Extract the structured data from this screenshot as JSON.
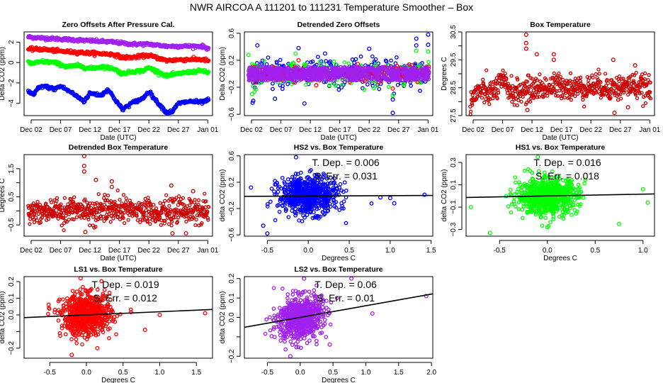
{
  "title": "NWR   AIRCOA A   111201 to 111231   Temperature Smoother – Box",
  "colors": {
    "HS2": "#0000ff",
    "HS1": "#00ff00",
    "LS1": "#ff0000",
    "LS2": "#a020f0",
    "box_temp": "#cc0000",
    "fit_line": "#000000"
  },
  "chart_data": [
    {
      "id": "zero-offsets",
      "type": "scatter",
      "title": "Zero Offsets After Pressure Cal.",
      "xlabel": "Date (UTC)",
      "ylabel": "Delta CO2 (ppm)",
      "x_ticks": [
        "Dec 02",
        "Dec 07",
        "Dec 12",
        "Dec 17",
        "Dec 22",
        "Dec 27",
        "Jan 01"
      ],
      "x_tick_days": [
        2,
        7,
        12,
        17,
        22,
        27,
        32
      ],
      "xlim": [
        0.8,
        32.8
      ],
      "ylim": [
        -5.2,
        3.0
      ],
      "y_ticks": [
        -4,
        -2,
        0,
        2
      ],
      "series": [
        {
          "name": "LS2",
          "x": [
            1.5,
            4,
            7,
            10,
            13,
            16,
            19,
            22,
            25,
            28,
            31,
            32
          ],
          "y": [
            2.5,
            2.4,
            2.3,
            2.2,
            2.1,
            2.0,
            1.8,
            1.8,
            1.6,
            1.6,
            1.6,
            1.4
          ]
        },
        {
          "name": "LS1",
          "x": [
            1.5,
            4,
            7,
            10,
            13,
            16,
            17.5,
            19,
            22,
            25,
            28,
            31,
            32
          ],
          "y": [
            1.3,
            1.3,
            1.1,
            1.0,
            0.9,
            0.8,
            0.5,
            0.5,
            0.7,
            0.2,
            0.3,
            0.3,
            0.2
          ]
        },
        {
          "name": "HS1",
          "x": [
            1.5,
            2,
            4,
            6,
            8,
            10,
            12,
            14,
            16,
            17.5,
            19,
            21,
            22,
            25,
            26,
            28,
            31,
            32
          ],
          "y": [
            0.0,
            -0.1,
            0.1,
            0.0,
            -0.4,
            -0.3,
            -0.6,
            -0.4,
            -0.6,
            -1.1,
            -0.9,
            -0.8,
            -0.5,
            -1.3,
            -1.2,
            -1.0,
            -0.8,
            -1.0
          ]
        },
        {
          "name": "HS2",
          "x": [
            1.5,
            2.5,
            3,
            4,
            6,
            7,
            9,
            11,
            12,
            14,
            15,
            17.5,
            19,
            21,
            22,
            23,
            25,
            26,
            27,
            29,
            31,
            32
          ],
          "y": [
            -2.8,
            -3.2,
            -2.6,
            -2.3,
            -2.6,
            -2.3,
            -3.0,
            -3.8,
            -3.0,
            -3.2,
            -2.6,
            -4.6,
            -4.0,
            -3.5,
            -2.8,
            -3.6,
            -4.9,
            -4.8,
            -4.0,
            -3.8,
            -3.9,
            -3.7
          ]
        }
      ]
    },
    {
      "id": "detrended-zero-offsets",
      "type": "scatter",
      "title": "Detrended Zero Offsets",
      "xlabel": "Date (UTC)",
      "ylabel": "Delta CO2 (ppm)",
      "x_ticks": [
        "Dec 02",
        "Dec 07",
        "Dec 12",
        "Dec 17",
        "Dec 22",
        "Dec 27",
        "Jan 01"
      ],
      "x_tick_days": [
        2,
        7,
        12,
        17,
        22,
        27,
        32
      ],
      "xlim": [
        0.8,
        32.8
      ],
      "ylim": [
        -0.62,
        0.62
      ],
      "y_ticks": [
        -0.6,
        -0.2,
        0.2,
        0.6
      ],
      "y_tick_labels": [
        "-0.6",
        "-0.2",
        "0.2",
        "0.6"
      ],
      "series": [
        {
          "name": "HS2",
          "spread": 0.25,
          "outliers": [
            [
              2.2,
              -0.43
            ],
            [
              2.3,
              -0.4
            ],
            [
              3,
              0.42
            ],
            [
              6,
              -0.37
            ],
            [
              10,
              0.38
            ],
            [
              11,
              -0.44
            ],
            [
              14.5,
              0.3
            ],
            [
              22,
              0.37
            ],
            [
              26,
              -0.58
            ],
            [
              26,
              -0.38
            ],
            [
              30,
              0.52
            ],
            [
              30,
              0.42
            ],
            [
              32,
              0.58
            ],
            [
              32,
              0.43
            ]
          ]
        },
        {
          "name": "HS1",
          "spread": 0.18,
          "outliers": [
            [
              1.5,
              0.28
            ],
            [
              2.1,
              -0.3
            ],
            [
              9.5,
              0.3
            ],
            [
              26,
              -0.32
            ],
            [
              30,
              0.34
            ],
            [
              32,
              0.33
            ]
          ]
        },
        {
          "name": "LS1",
          "spread": 0.12,
          "outliers": [
            [
              10,
              0.2
            ],
            [
              13,
              -0.17
            ],
            [
              26,
              -0.22
            ]
          ]
        },
        {
          "name": "LS2",
          "spread": 0.1,
          "outliers": []
        }
      ]
    },
    {
      "id": "box-temperature",
      "type": "scatter",
      "title": "Box Temperature",
      "xlabel": "Date (UTC)",
      "ylabel": "Degrees C",
      "x_ticks": [
        "Dec 02",
        "Dec 07",
        "Dec 12",
        "Dec 17",
        "Dec 22",
        "Dec 27",
        "Jan 01"
      ],
      "x_tick_days": [
        2,
        7,
        12,
        17,
        22,
        27,
        32
      ],
      "xlim": [
        0.8,
        32.8
      ],
      "ylim": [
        27.5,
        30.5
      ],
      "y_ticks": [
        27.5,
        28.0,
        28.5,
        29.0,
        29.5,
        30.0,
        30.5
      ],
      "y_tick_labels": [
        "27.5",
        "",
        "28.5",
        "",
        "29.5",
        "",
        "30.5"
      ],
      "baseline": {
        "x": [
          1.5,
          3,
          5,
          7,
          9,
          11,
          13,
          15,
          17,
          19,
          21,
          23,
          25,
          27,
          29,
          31,
          32
        ],
        "y": [
          28.0,
          28.4,
          28.3,
          28.7,
          28.3,
          28.4,
          28.5,
          28.5,
          28.6,
          28.5,
          28.5,
          28.6,
          28.5,
          28.5,
          28.6,
          28.5,
          28.4
        ]
      },
      "outliers": [
        [
          11,
          30.4
        ],
        [
          11,
          30.1
        ],
        [
          11,
          29.9
        ],
        [
          11.2,
          27.7
        ],
        [
          12.8,
          29.7
        ],
        [
          15.7,
          29.7
        ],
        [
          15.7,
          29.5
        ],
        [
          25.8,
          29.5
        ],
        [
          26,
          27.6
        ],
        [
          28.3,
          27.8
        ],
        [
          29.5,
          29.3
        ]
      ]
    },
    {
      "id": "detrended-box-temperature",
      "type": "scatter",
      "title": "Detrended Box Temperature",
      "xlabel": "Date (UTC)",
      "ylabel": "Degrees C",
      "x_ticks": [
        "Dec 02",
        "Dec 07",
        "Dec 12",
        "Dec 17",
        "Dec 22",
        "Dec 27",
        "Jan 01"
      ],
      "x_tick_days": [
        2,
        7,
        12,
        17,
        22,
        27,
        32
      ],
      "xlim": [
        0.8,
        32.8
      ],
      "ylim": [
        -0.9,
        2.0
      ],
      "y_ticks": [
        -0.5,
        0.0,
        0.5,
        1.0,
        1.5
      ],
      "y_tick_labels": [
        "-0.5",
        "",
        "0.5",
        "",
        "1.5"
      ],
      "outliers": [
        [
          11,
          1.95
        ],
        [
          11,
          1.6
        ],
        [
          11,
          1.4
        ],
        [
          11.2,
          -0.75
        ],
        [
          13,
          1.1
        ],
        [
          15.7,
          1.05
        ],
        [
          15.7,
          0.85
        ],
        [
          25.8,
          0.9
        ],
        [
          26,
          -0.8
        ],
        [
          28.3,
          -0.8
        ],
        [
          29.5,
          0.7
        ]
      ]
    },
    {
      "id": "hs2-vs-box",
      "type": "scatter",
      "title": "HS2 vs. Box Temperature",
      "xlabel": "Degrees C",
      "ylabel": "delta CO2 (ppm)",
      "series_color": "HS2",
      "xlim": [
        -0.78,
        1.52
      ],
      "ylim": [
        -0.62,
        0.62
      ],
      "x_ticks": [
        -0.5,
        0.0,
        0.5,
        1.0,
        1.5
      ],
      "x_tick_labels": [
        "-0.5",
        "0.0",
        "0.5",
        "1.0",
        "1.5"
      ],
      "y_ticks": [
        -0.6,
        -0.2,
        0.2,
        0.6
      ],
      "y_tick_labels": [
        "-0.6",
        "-0.2",
        "0.2",
        "0.6"
      ],
      "cloud": {
        "x_sd": 0.18,
        "y_sd": 0.14
      },
      "outliers": [
        [
          1.42,
          0.01
        ],
        [
          -0.5,
          -0.58
        ],
        [
          -0.55,
          -0.46
        ],
        [
          -0.15,
          0.58
        ],
        [
          1.05,
          -0.12
        ],
        [
          1.0,
          -0.04
        ],
        [
          0.88,
          -0.03
        ],
        [
          -0.7,
          0.12
        ]
      ],
      "fit": {
        "slope": 0.006,
        "intercept": -0.01
      },
      "annotations": [
        "T. Dep. =  0.006",
        "S. Err. =  0.031"
      ]
    },
    {
      "id": "hs1-vs-box",
      "type": "scatter",
      "title": "HS1 vs. Box Temperature",
      "xlabel": "Degrees C",
      "ylabel": "delta CO2 (ppm)",
      "series_color": "HS1",
      "xlim": [
        -0.85,
        1.12
      ],
      "ylim": [
        -0.36,
        0.37
      ],
      "x_ticks": [
        -0.5,
        0.0,
        0.5,
        1.0
      ],
      "x_tick_labels": [
        "-0.5",
        "0.0",
        "0.5",
        "1.0"
      ],
      "y_ticks": [
        -0.3,
        -0.1,
        0.1,
        0.3
      ],
      "y_tick_labels": [
        "-0.3",
        "-0.1",
        "0.1",
        "0.3"
      ],
      "cloud": {
        "x_sd": 0.16,
        "y_sd": 0.08
      },
      "outliers": [
        [
          -0.6,
          -0.33
        ],
        [
          1.0,
          0.06
        ],
        [
          1.05,
          -0.06
        ],
        [
          0.75,
          -0.25
        ],
        [
          -0.8,
          -0.1
        ],
        [
          -0.1,
          0.35
        ],
        [
          0.0,
          -0.28
        ]
      ],
      "fit": {
        "slope": 0.016,
        "intercept": 0.0
      },
      "annotations": [
        "T. Dep. =  0.016",
        "S. Err. =  0.018"
      ]
    },
    {
      "id": "ls1-vs-box",
      "type": "scatter",
      "title": "LS1 vs. Box Temperature",
      "xlabel": "Degrees C",
      "ylabel": "delta CO2 (ppm)",
      "series_color": "LS1",
      "xlim": [
        -0.85,
        1.72
      ],
      "ylim": [
        -0.26,
        0.23
      ],
      "x_ticks": [
        -0.5,
        0.0,
        0.5,
        1.0,
        1.5
      ],
      "x_tick_labels": [
        "-0.5",
        "0.0",
        "0.5",
        "1.0",
        "1.5"
      ],
      "y_ticks": [
        -0.2,
        -0.1,
        0.0,
        0.1,
        0.2
      ],
      "y_tick_labels": [
        "-0.2",
        "",
        "0.0",
        "0.1",
        "0.2"
      ],
      "cloud": {
        "x_sd": 0.17,
        "y_sd": 0.06
      },
      "outliers": [
        [
          1.62,
          0.01
        ],
        [
          -0.2,
          -0.24
        ],
        [
          -0.08,
          0.22
        ],
        [
          0.15,
          -0.2
        ],
        [
          1.0,
          0.0
        ],
        [
          0.8,
          -0.09
        ]
      ],
      "fit": {
        "slope": 0.019,
        "intercept": 0.0
      },
      "annotations": [
        "T. Dep. =  0.019",
        "S. Err. =  0.012"
      ]
    },
    {
      "id": "ls2-vs-box",
      "type": "scatter",
      "title": "LS2 vs. Box Temperature",
      "xlabel": "Degrees C",
      "ylabel": "delta CO2 (ppm)",
      "series_color": "LS2",
      "xlim": [
        -0.85,
        2.02
      ],
      "ylim": [
        -0.21,
        0.21
      ],
      "x_ticks": [
        -0.5,
        0.0,
        0.5,
        1.0,
        1.5,
        2.0
      ],
      "x_tick_labels": [
        "-0.5",
        "0.0",
        "0.5",
        "1.0",
        "1.5",
        "2.0"
      ],
      "y_ticks": [
        -0.2,
        -0.1,
        0.0,
        0.1,
        0.2
      ],
      "y_tick_labels": [
        "-0.2",
        "",
        "0.0",
        "0.1",
        "0.2"
      ],
      "cloud": {
        "x_sd": 0.17,
        "y_sd": 0.055
      },
      "outliers": [
        [
          1.92,
          0.11
        ],
        [
          1.1,
          0.02
        ],
        [
          -0.15,
          -0.2
        ],
        [
          0.06,
          0.2
        ],
        [
          0.78,
          0.2
        ],
        [
          0.45,
          -0.14
        ]
      ],
      "fit": {
        "slope": 0.06,
        "intercept": 0.0
      },
      "annotations": [
        "T. Dep. =  0.06",
        "S. Err. =  0.01"
      ]
    }
  ]
}
